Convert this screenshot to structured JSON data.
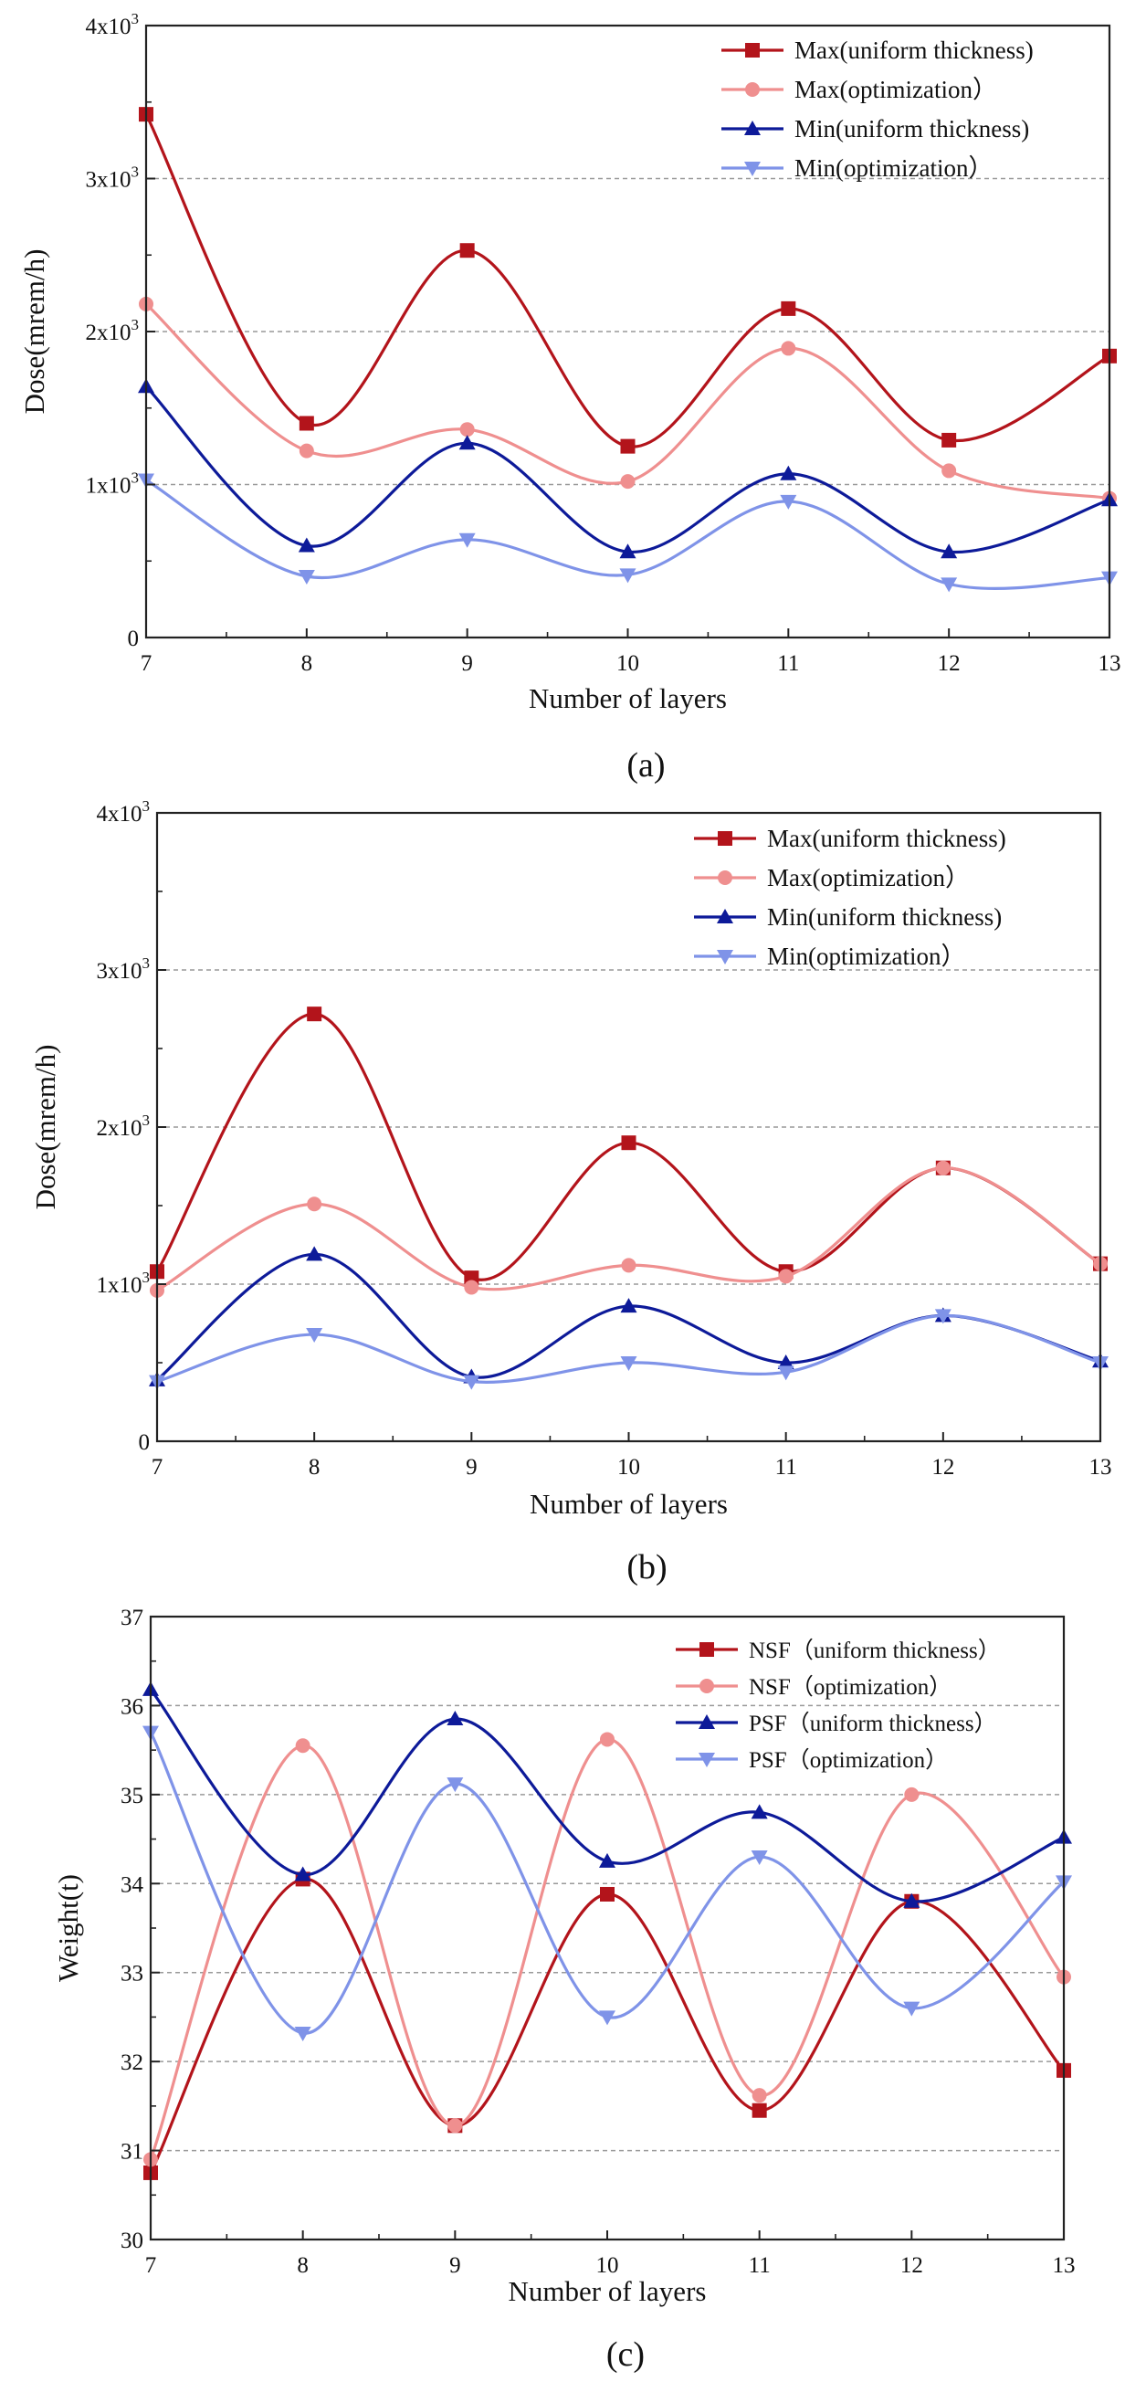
{
  "chart_data": [
    {
      "id": "a",
      "type": "line",
      "caption": "(a)",
      "xlabel": "Number of layers",
      "ylabel": "Dose(mrem/h)",
      "x": [
        7,
        8,
        9,
        10,
        11,
        12,
        13
      ],
      "xlim": [
        7,
        13
      ],
      "ylim": [
        0,
        4000
      ],
      "yticks": [
        0,
        1000,
        2000,
        3000,
        4000
      ],
      "ytick_labels": [
        "0",
        "1x10³",
        "2x10³",
        "3x10³",
        "4x10³"
      ],
      "grid": "horizontal-dashed",
      "legend_position": "top-right",
      "series": [
        {
          "name": "Max(uniform thickness)",
          "color": "#b3141b",
          "marker": "square",
          "values": [
            3420,
            1400,
            2530,
            1250,
            2150,
            1290,
            1840
          ]
        },
        {
          "name": "Max(optimization）",
          "color": "#ef8f8f",
          "marker": "circle",
          "values": [
            2180,
            1220,
            1360,
            1020,
            1890,
            1090,
            910
          ]
        },
        {
          "name": "Min(uniform thickness)",
          "color": "#0d1a99",
          "marker": "triangle-up",
          "values": [
            1640,
            600,
            1270,
            560,
            1070,
            560,
            900
          ]
        },
        {
          "name": "Min(optimization）",
          "color": "#7f93e8",
          "marker": "triangle-down",
          "values": [
            1030,
            400,
            640,
            410,
            890,
            350,
            390
          ]
        }
      ]
    },
    {
      "id": "b",
      "type": "line",
      "caption": "(b)",
      "xlabel": "Number of layers",
      "ylabel": "Dose(mrem/h)",
      "x": [
        7,
        8,
        9,
        10,
        11,
        12,
        13
      ],
      "xlim": [
        7,
        13
      ],
      "ylim": [
        0,
        4000
      ],
      "yticks": [
        0,
        1000,
        2000,
        3000,
        4000
      ],
      "ytick_labels": [
        "0",
        "1x10³",
        "2x10³",
        "3x10³",
        "4x10³"
      ],
      "grid": "horizontal-dashed",
      "legend_position": "top-right",
      "series": [
        {
          "name": "Max(uniform thickness)",
          "color": "#b3141b",
          "marker": "square",
          "values": [
            1080,
            2720,
            1040,
            1900,
            1080,
            1740,
            1130
          ]
        },
        {
          "name": "Max(optimization）",
          "color": "#ef8f8f",
          "marker": "circle",
          "values": [
            960,
            1510,
            980,
            1120,
            1050,
            1740,
            1130
          ]
        },
        {
          "name": "Min(uniform thickness)",
          "color": "#0d1a99",
          "marker": "triangle-up",
          "values": [
            390,
            1190,
            410,
            860,
            500,
            800,
            510
          ]
        },
        {
          "name": "Min(optimization）",
          "color": "#7f93e8",
          "marker": "triangle-down",
          "values": [
            380,
            680,
            380,
            500,
            440,
            800,
            500
          ]
        }
      ]
    },
    {
      "id": "c",
      "type": "line",
      "caption": "(c)",
      "xlabel": "Number of layers",
      "ylabel": "Weight(t)",
      "x": [
        7,
        8,
        9,
        10,
        11,
        12,
        13
      ],
      "xlim": [
        7,
        13
      ],
      "ylim": [
        30,
        37
      ],
      "yticks": [
        30,
        31,
        32,
        33,
        34,
        35,
        36,
        37
      ],
      "ytick_labels": [
        "30",
        "31",
        "32",
        "33",
        "34",
        "35",
        "36",
        "37"
      ],
      "grid": "horizontal-dashed",
      "legend_position": "top-right",
      "series": [
        {
          "name": "NSF（uniform thickness）",
          "color": "#b3141b",
          "marker": "square",
          "values": [
            30.75,
            34.05,
            31.28,
            33.88,
            31.45,
            33.8,
            31.9
          ]
        },
        {
          "name": "NSF（optimization）",
          "color": "#ef8f8f",
          "marker": "circle",
          "values": [
            30.9,
            35.55,
            31.28,
            35.62,
            31.62,
            35.0,
            32.95
          ]
        },
        {
          "name": "PSF（uniform thickness）",
          "color": "#0d1a99",
          "marker": "triangle-up",
          "values": [
            36.18,
            34.1,
            35.85,
            34.25,
            34.8,
            33.8,
            34.52
          ]
        },
        {
          "name": "PSF（optimization）",
          "color": "#7f93e8",
          "marker": "triangle-down",
          "values": [
            35.7,
            32.32,
            35.12,
            32.5,
            34.3,
            32.6,
            34.02
          ]
        }
      ]
    }
  ]
}
